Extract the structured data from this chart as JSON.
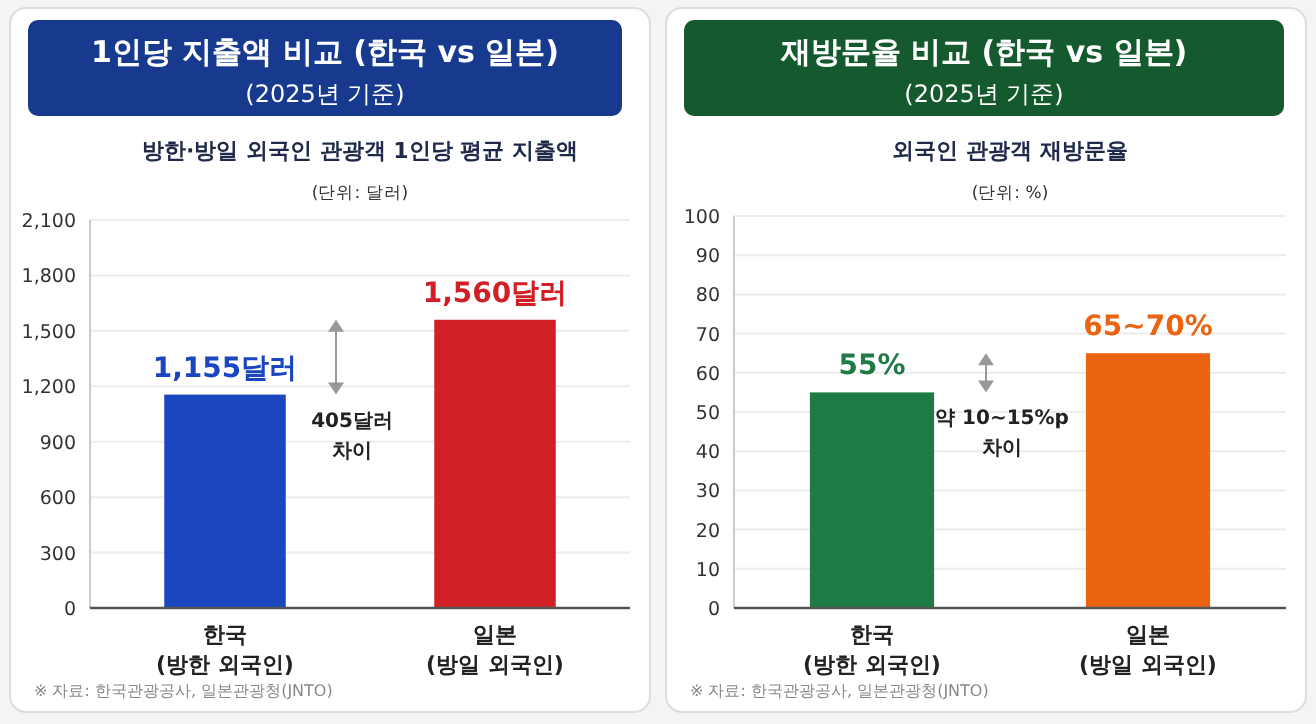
{
  "chart_data": [
    {
      "type": "bar",
      "title": "1인당 지출액 비교 (한국 vs 일본)",
      "subtitle": "(2025년 기준)",
      "ylabel": "(단위: 달러)",
      "categories": [
        "한국\n(방한 외국인)",
        "일본\n(방일 외국인)"
      ],
      "values": [
        1155,
        1560
      ],
      "colors": [
        "#1a47c0",
        "#d11f26"
      ],
      "value_labels": [
        "1,155달러",
        "1,560달러"
      ],
      "ylim": [
        0,
        2100
      ],
      "yticks": [
        {
          "value": 0,
          "label": "0"
        },
        {
          "value": 300,
          "label": "300"
        },
        {
          "value": 600,
          "label": "600"
        },
        {
          "value": 900,
          "label": "900"
        },
        {
          "value": 1200,
          "label": "1,200"
        },
        {
          "value": 1500,
          "label": "1,500"
        },
        {
          "value": 1800,
          "label": "1,800"
        },
        {
          "value": 2100,
          "label": "2,100"
        }
      ],
      "grid": "y",
      "annotations": [
        "방한·방일 외국인 관광객 1인당 평균 지출액",
        "405달러\n차이",
        "※ 자료: 한국관광공사, 일본관광청(JNTO)"
      ]
    },
    {
      "type": "bar",
      "title": "재방문율 비교 (한국 vs 일본)",
      "subtitle": "(2025년 기준)",
      "ylabel": "(단위: %)",
      "categories": [
        "한국\n(방한 외국인)",
        "일본\n(방일 외국인)"
      ],
      "values": [
        55,
        65
      ],
      "colors": [
        "#1e7b45",
        "#ec6412"
      ],
      "value_labels": [
        "55%",
        "65~70%"
      ],
      "ylim": [
        0,
        100
      ],
      "yticks": [
        0,
        10,
        20,
        30,
        40,
        50,
        60,
        70,
        80,
        90,
        100
      ],
      "grid": "y",
      "annotations": [
        "외국인 관광객 재방문율",
        "약 10~15%p\n차이",
        "※ 자료: 한국관광공사, 일본관광청(JNTO)"
      ]
    }
  ]
}
